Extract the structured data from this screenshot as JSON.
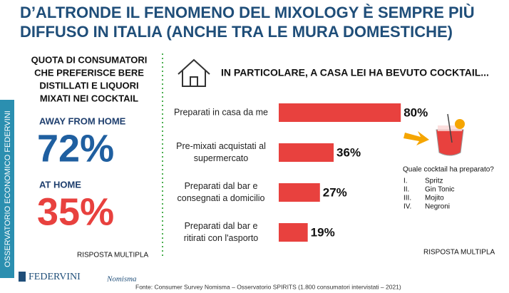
{
  "title_lines": [
    "D’ALTRONDE IL FENOMENO DEL MIXOLOGY È SEMPRE PIÙ",
    "DIFFUSO IN ITALIA (ANCHE TRA LE MURA DOMESTICHE)"
  ],
  "side_label": "OSSERVATORIO ECONOMICO  FEDERVINI",
  "left": {
    "heading_lines": [
      "QUOTA DI CONSUMATORI",
      "CHE PREFERISCE BERE",
      "DISTILLATI E LIQUORI",
      "MIXATI NEI COCKTAIL"
    ],
    "stats": [
      {
        "label": "AWAY FROM HOME",
        "value_label": "72%"
      },
      {
        "label": "AT HOME",
        "value_label": "35%"
      }
    ],
    "note": "RISPOSTA MULTIPLA"
  },
  "chart_data": {
    "type": "bar",
    "orientation": "horizontal",
    "title": "IN PARTICOLARE, A CASA LEI HA BEVUTO COCKTAIL...",
    "categories": [
      [
        "Preparati in casa da me"
      ],
      [
        "Pre-mixati acquistati al",
        "supermercato"
      ],
      [
        "Preparati dal bar e",
        "consegnati a domicilio"
      ],
      [
        "Preparati dal bar e",
        "ritirati con l'asporto"
      ]
    ],
    "values": [
      80,
      36,
      27,
      19
    ],
    "value_labels": [
      "80%",
      "36%",
      "27%",
      "19%"
    ],
    "color": "#e8413e",
    "note": "RISPOSTA MULTIPLA"
  },
  "cocktail": {
    "question": "Quale cocktail  ha preparato?",
    "items": [
      {
        "num": "I.",
        "name": "Spritz"
      },
      {
        "num": "II.",
        "name": "Gin Tonic"
      },
      {
        "num": "III.",
        "name": "Mojito"
      },
      {
        "num": "IV.",
        "name": "Negroni"
      }
    ]
  },
  "logos": [
    "FEDERVINI",
    "Nomisma"
  ],
  "source": "Fonte: Consumer Survey Nomisma – Osservatorio SPIRITS (1.800 consumatori intervistati – 2021)"
}
